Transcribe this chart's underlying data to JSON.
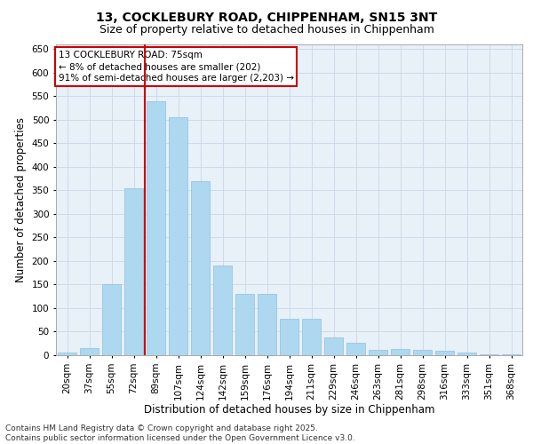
{
  "title_line1": "13, COCKLEBURY ROAD, CHIPPENHAM, SN15 3NT",
  "title_line2": "Size of property relative to detached houses in Chippenham",
  "xlabel": "Distribution of detached houses by size in Chippenham",
  "ylabel": "Number of detached properties",
  "categories": [
    "20sqm",
    "37sqm",
    "55sqm",
    "72sqm",
    "89sqm",
    "107sqm",
    "124sqm",
    "142sqm",
    "159sqm",
    "176sqm",
    "194sqm",
    "211sqm",
    "229sqm",
    "246sqm",
    "263sqm",
    "281sqm",
    "298sqm",
    "316sqm",
    "333sqm",
    "351sqm",
    "368sqm"
  ],
  "values": [
    5,
    15,
    150,
    355,
    540,
    505,
    370,
    190,
    130,
    130,
    78,
    78,
    37,
    27,
    12,
    13,
    12,
    10,
    5,
    2,
    1
  ],
  "bar_color": "#add8f0",
  "bar_edge_color": "#90c0e0",
  "grid_color": "#c8d8e8",
  "background_color": "#e8f0f8",
  "vline_x_index": 3,
  "vline_color": "#cc0000",
  "annotation_text": "13 COCKLEBURY ROAD: 75sqm\n← 8% of detached houses are smaller (202)\n91% of semi-detached houses are larger (2,203) →",
  "annotation_box_color": "#ffffff",
  "annotation_box_edge_color": "#cc0000",
  "ylim": [
    0,
    660
  ],
  "yticks": [
    0,
    50,
    100,
    150,
    200,
    250,
    300,
    350,
    400,
    450,
    500,
    550,
    600,
    650
  ],
  "footer_line1": "Contains HM Land Registry data © Crown copyright and database right 2025.",
  "footer_line2": "Contains public sector information licensed under the Open Government Licence v3.0.",
  "title_fontsize": 10,
  "subtitle_fontsize": 9,
  "axis_label_fontsize": 8.5,
  "tick_fontsize": 7.5,
  "annotation_fontsize": 7.5,
  "footer_fontsize": 6.5
}
